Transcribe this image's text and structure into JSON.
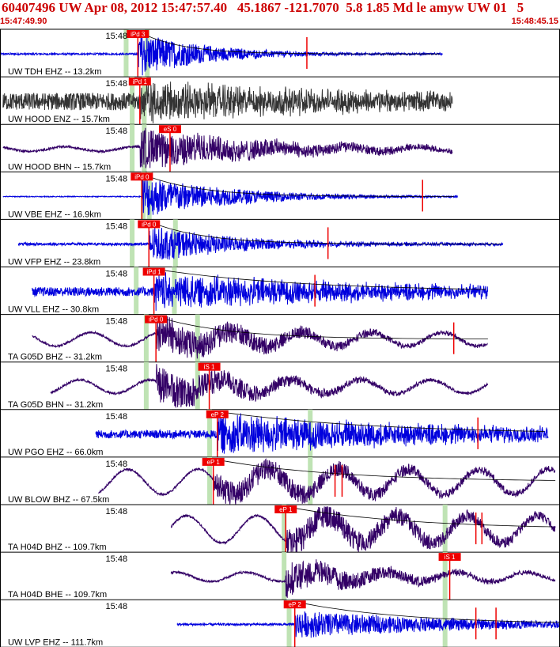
{
  "header": {
    "title": "60407496 UW Apr 08, 2012 15:47:57.40   45.1867 -121.7070  5.8 1.85 Md le amyw UW 01   5",
    "start_time": "15:47:49.90",
    "end_time": "15:48:45.15"
  },
  "colors": {
    "header": "#cc0000",
    "ehz_trace": "#0000dd",
    "bh_trace": "#330066",
    "hood_enz_trace": "#333333",
    "pick": "#ee0000",
    "pick_window": "#bfe3b4",
    "coda_curve": "#000000"
  },
  "chart_data": {
    "type": "line",
    "x_axis": {
      "unit": "time",
      "range": [
        "15:47:49.90",
        "15:48:45.15"
      ],
      "tick_label": "15:48"
    },
    "panels": [
      {
        "id": "tdh",
        "label": "UW TDH EHZ -- 13.2km",
        "component": "EHZ",
        "pick": "iPd 3",
        "pick_time": 13.7,
        "trace": [
          0.0,
          44.0
        ],
        "onset": 13.7,
        "window": [
          12.3,
          14.4
        ],
        "amp": 0.98,
        "noise": 0.04,
        "decay": 7.0,
        "coda": true,
        "end_mark": 30.5,
        "extra_mark": null,
        "s_pick": null,
        "style": "ehz"
      },
      {
        "id": "hood",
        "label": "UW HOOD ENZ -- 15.7km",
        "component": "ENZ",
        "pick": "iPd 1",
        "pick_time": 13.9,
        "trace": [
          0.3,
          45.0
        ],
        "onset": 13.9,
        "window": [
          12.9,
          14.1
        ],
        "amp": 0.75,
        "noise": 0.38,
        "decay": 18.0,
        "coda": false,
        "end_mark": null,
        "extra_mark": null,
        "s_pick": null,
        "style": "enz"
      },
      {
        "id": "hoodn",
        "label": "UW HOOD BHN -- 15.7km",
        "component": "BHN",
        "pick": "eS 0",
        "pick_time": 16.9,
        "trace": [
          0.3,
          45.0
        ],
        "onset": 13.9,
        "window": [
          12.9,
          14.1
        ],
        "amp": 0.92,
        "noise": 0.1,
        "decay": 14.0,
        "coda": false,
        "end_mark": null,
        "extra_mark": null,
        "s_pick": 16.9,
        "style": "bh"
      },
      {
        "id": "vbe",
        "label": "UW VBE EHZ -- 16.9km",
        "component": "EHZ",
        "pick": "iPd 0",
        "pick_time": 14.1,
        "trace": [
          0.3,
          45.5
        ],
        "onset": 14.1,
        "window": [
          14.0,
          14.6
        ],
        "amp": 0.95,
        "noise": 0.02,
        "decay": 9.0,
        "coda": true,
        "end_mark": 42.0,
        "extra_mark": null,
        "s_pick": null,
        "style": "ehz"
      },
      {
        "id": "vfp",
        "label": "UW VFP EHZ -- 23.8km",
        "component": "EHZ",
        "pick": "iPd 0",
        "pick_time": 14.8,
        "trace": [
          1.8,
          50.0
        ],
        "onset": 14.8,
        "window": [
          12.9,
          17.2
        ],
        "amp": 0.8,
        "noise": 0.06,
        "decay": 9.0,
        "coda": true,
        "end_mark": 32.6,
        "extra_mark": null,
        "s_pick": null,
        "style": "ehz"
      },
      {
        "id": "vll",
        "label": "UW VLL EHZ -- 30.8km",
        "component": "EHZ",
        "pick": "iPd 1",
        "pick_time": 15.3,
        "trace": [
          3.2,
          48.5
        ],
        "onset": 15.3,
        "window": [
          13.3,
          17.1
        ],
        "amp": 0.72,
        "noise": 0.2,
        "decay": 24.0,
        "coda": true,
        "end_mark": 31.3,
        "extra_mark": null,
        "s_pick": null,
        "style": "ehz"
      },
      {
        "id": "g05dz",
        "label": "TA G05D BHZ -- 31.2km",
        "component": "BHZ",
        "pick": "iPd 0",
        "pick_time": 15.5,
        "trace": [
          3.2,
          48.5
        ],
        "onset": 15.5,
        "window": [
          14.3,
          19.4
        ],
        "amp": 0.85,
        "noise": 0.3,
        "decay": 12.0,
        "coda": true,
        "end_mark": 45.1,
        "extra_mark": null,
        "s_pick": null,
        "style": "bh"
      },
      {
        "id": "g05dn",
        "label": "TA G05D BHN -- 31.2km",
        "component": "BHN",
        "pick": "iS 1",
        "pick_time": 20.8,
        "trace": [
          5.0,
          48.5
        ],
        "onset": 15.5,
        "window": [
          14.3,
          19.4
        ],
        "amp": 0.9,
        "noise": 0.3,
        "decay": 10.0,
        "coda": false,
        "end_mark": null,
        "extra_mark": null,
        "s_pick": 20.8,
        "style": "bh"
      },
      {
        "id": "pgo",
        "label": "UW PGO EHZ -- 66.0km",
        "component": "EHZ",
        "pick": "eP 2",
        "pick_time": 21.6,
        "trace": [
          9.5,
          54.5
        ],
        "onset": 21.6,
        "window": [
          20.6,
          30.6
        ],
        "amp": 0.82,
        "noise": 0.18,
        "decay": 26.0,
        "coda": true,
        "end_mark": 47.5,
        "extra_mark": null,
        "s_pick": null,
        "style": "ehz"
      },
      {
        "id": "blow",
        "label": "UW BLOW BHZ -- 67.5km",
        "component": "BHZ",
        "pick": "eP 1",
        "pick_time": 21.2,
        "trace": [
          9.8,
          55.2
        ],
        "onset": 21.2,
        "window": [
          20.6,
          30.6
        ],
        "amp": 0.6,
        "noise": 0.55,
        "decay": 20.0,
        "coda": true,
        "end_mark": 33.3,
        "extra_mark": 34.0,
        "s_pick": null,
        "style": "bh"
      },
      {
        "id": "h04dz",
        "label": "TA H04D BHZ -- 109.7km",
        "component": "BHZ",
        "pick": "eP 1",
        "pick_time": 28.4,
        "trace": [
          17.0,
          55.2
        ],
        "onset": 28.4,
        "window": [
          28.0,
          44.0
        ],
        "amp": 0.65,
        "noise": 0.6,
        "decay": 20.0,
        "coda": true,
        "end_mark": 47.3,
        "extra_mark": 47.9,
        "s_pick": null,
        "style": "bh"
      },
      {
        "id": "h04de",
        "label": "TA H04D BHE -- 109.7km",
        "component": "BHE",
        "pick": "iS 1",
        "pick_time": 44.7,
        "trace": [
          17.0,
          55.2
        ],
        "onset": 28.4,
        "window": [
          28.0,
          44.0
        ],
        "amp": 0.75,
        "noise": 0.2,
        "decay": 10.0,
        "coda": false,
        "end_mark": null,
        "extra_mark": null,
        "s_pick": 44.7,
        "style": "bh"
      },
      {
        "id": "lvp",
        "label": "UW LVP EHZ -- 111.7km",
        "component": "EHZ",
        "pick": "eP 2",
        "pick_time": 29.3,
        "trace": [
          17.6,
          57.0
        ],
        "onset": 29.3,
        "window": [
          28.5,
          44.0
        ],
        "amp": 0.6,
        "noise": 0.05,
        "decay": 18.0,
        "coda": true,
        "end_mark": 49.3,
        "extra_mark": 47.3,
        "s_pick": null,
        "style": "ehz"
      }
    ]
  }
}
